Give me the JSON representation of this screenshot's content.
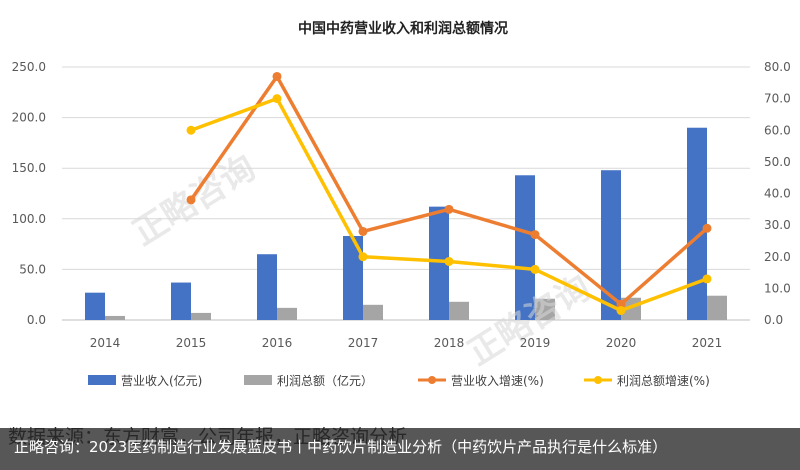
{
  "chart_data": {
    "type": "bar",
    "title": "中国中药营业收入和利润总额情况",
    "categories": [
      "2014",
      "2015",
      "2016",
      "2017",
      "2018",
      "2019",
      "2020",
      "2021"
    ],
    "series": [
      {
        "name": "营业收入(亿元)",
        "kind": "bar",
        "axis": "left",
        "color": "#4472C4",
        "values": [
          27,
          37,
          65,
          83,
          112,
          143,
          148,
          190
        ]
      },
      {
        "name": "利润总额（亿元）",
        "kind": "bar",
        "axis": "left",
        "color": "#A5A5A5",
        "values": [
          4,
          7,
          12,
          15,
          18,
          21,
          22,
          24
        ]
      },
      {
        "name": "营业收入增速(%)",
        "kind": "line",
        "axis": "right",
        "color": "#ED7D31",
        "values": [
          null,
          38,
          77,
          28,
          35,
          27,
          5,
          29
        ]
      },
      {
        "name": "利润总额增速(%)",
        "kind": "line",
        "axis": "right",
        "color": "#FFC000",
        "values": [
          null,
          60,
          70,
          20,
          18.5,
          16,
          3,
          13
        ]
      }
    ],
    "y_left": {
      "min": 0,
      "max": 250,
      "step": 50,
      "ticks": [
        "0.0",
        "50.0",
        "100.0",
        "150.0",
        "200.0",
        "250.0"
      ]
    },
    "y_right": {
      "min": 0,
      "max": 80,
      "step": 10,
      "ticks": [
        "0.0",
        "10.0",
        "20.0",
        "30.0",
        "40.0",
        "50.0",
        "60.0",
        "70.0",
        "80.0"
      ]
    },
    "grid": true,
    "legend_position": "bottom"
  },
  "watermark": "正略咨询",
  "source": "数据来源：东方财富，公司年报，正略咨询分析",
  "caption": "正略咨询：2023医药制造行业发展蓝皮书丨中药饮片制造业分析（中药饮片产品执行是什么标准）"
}
